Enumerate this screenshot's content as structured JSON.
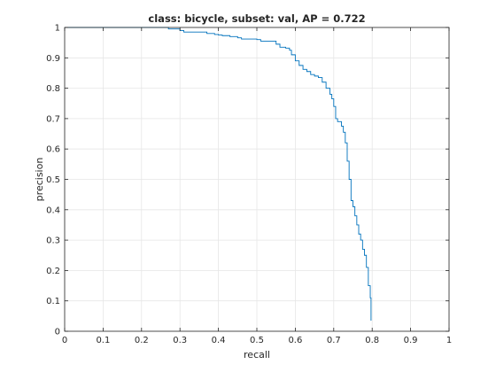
{
  "chart_data": {
    "type": "line",
    "title": "class: bicycle, subset: val, AP = 0.722",
    "xlabel": "recall",
    "ylabel": "precision",
    "xlim": [
      0,
      1
    ],
    "ylim": [
      0,
      1
    ],
    "xticks": [
      "0",
      "0.1",
      "0.2",
      "0.3",
      "0.4",
      "0.5",
      "0.6",
      "0.7",
      "0.8",
      "0.9",
      "1"
    ],
    "yticks": [
      "0",
      "0.1",
      "0.2",
      "0.3",
      "0.4",
      "0.5",
      "0.6",
      "0.7",
      "0.8",
      "0.9",
      "1"
    ],
    "grid": true,
    "line_color": "#0072BD",
    "series": [
      {
        "name": "",
        "x": [
          0.0,
          0.26,
          0.27,
          0.3,
          0.31,
          0.36,
          0.37,
          0.38,
          0.39,
          0.4,
          0.41,
          0.43,
          0.45,
          0.46,
          0.5,
          0.51,
          0.55,
          0.56,
          0.575,
          0.585,
          0.59,
          0.6,
          0.61,
          0.62,
          0.63,
          0.64,
          0.65,
          0.66,
          0.67,
          0.68,
          0.69,
          0.695,
          0.7,
          0.705,
          0.71,
          0.72,
          0.725,
          0.73,
          0.735,
          0.74,
          0.745,
          0.75,
          0.755,
          0.76,
          0.765,
          0.77,
          0.775,
          0.78,
          0.785,
          0.79,
          0.795,
          0.797
        ],
        "y": [
          1.0,
          1.0,
          0.995,
          0.99,
          0.985,
          0.985,
          0.98,
          0.98,
          0.977,
          0.975,
          0.973,
          0.97,
          0.966,
          0.962,
          0.96,
          0.955,
          0.945,
          0.935,
          0.932,
          0.925,
          0.91,
          0.89,
          0.875,
          0.862,
          0.855,
          0.845,
          0.84,
          0.835,
          0.82,
          0.8,
          0.78,
          0.765,
          0.74,
          0.7,
          0.69,
          0.675,
          0.655,
          0.62,
          0.56,
          0.5,
          0.43,
          0.41,
          0.38,
          0.35,
          0.32,
          0.3,
          0.27,
          0.25,
          0.21,
          0.15,
          0.11,
          0.035
        ]
      }
    ]
  }
}
